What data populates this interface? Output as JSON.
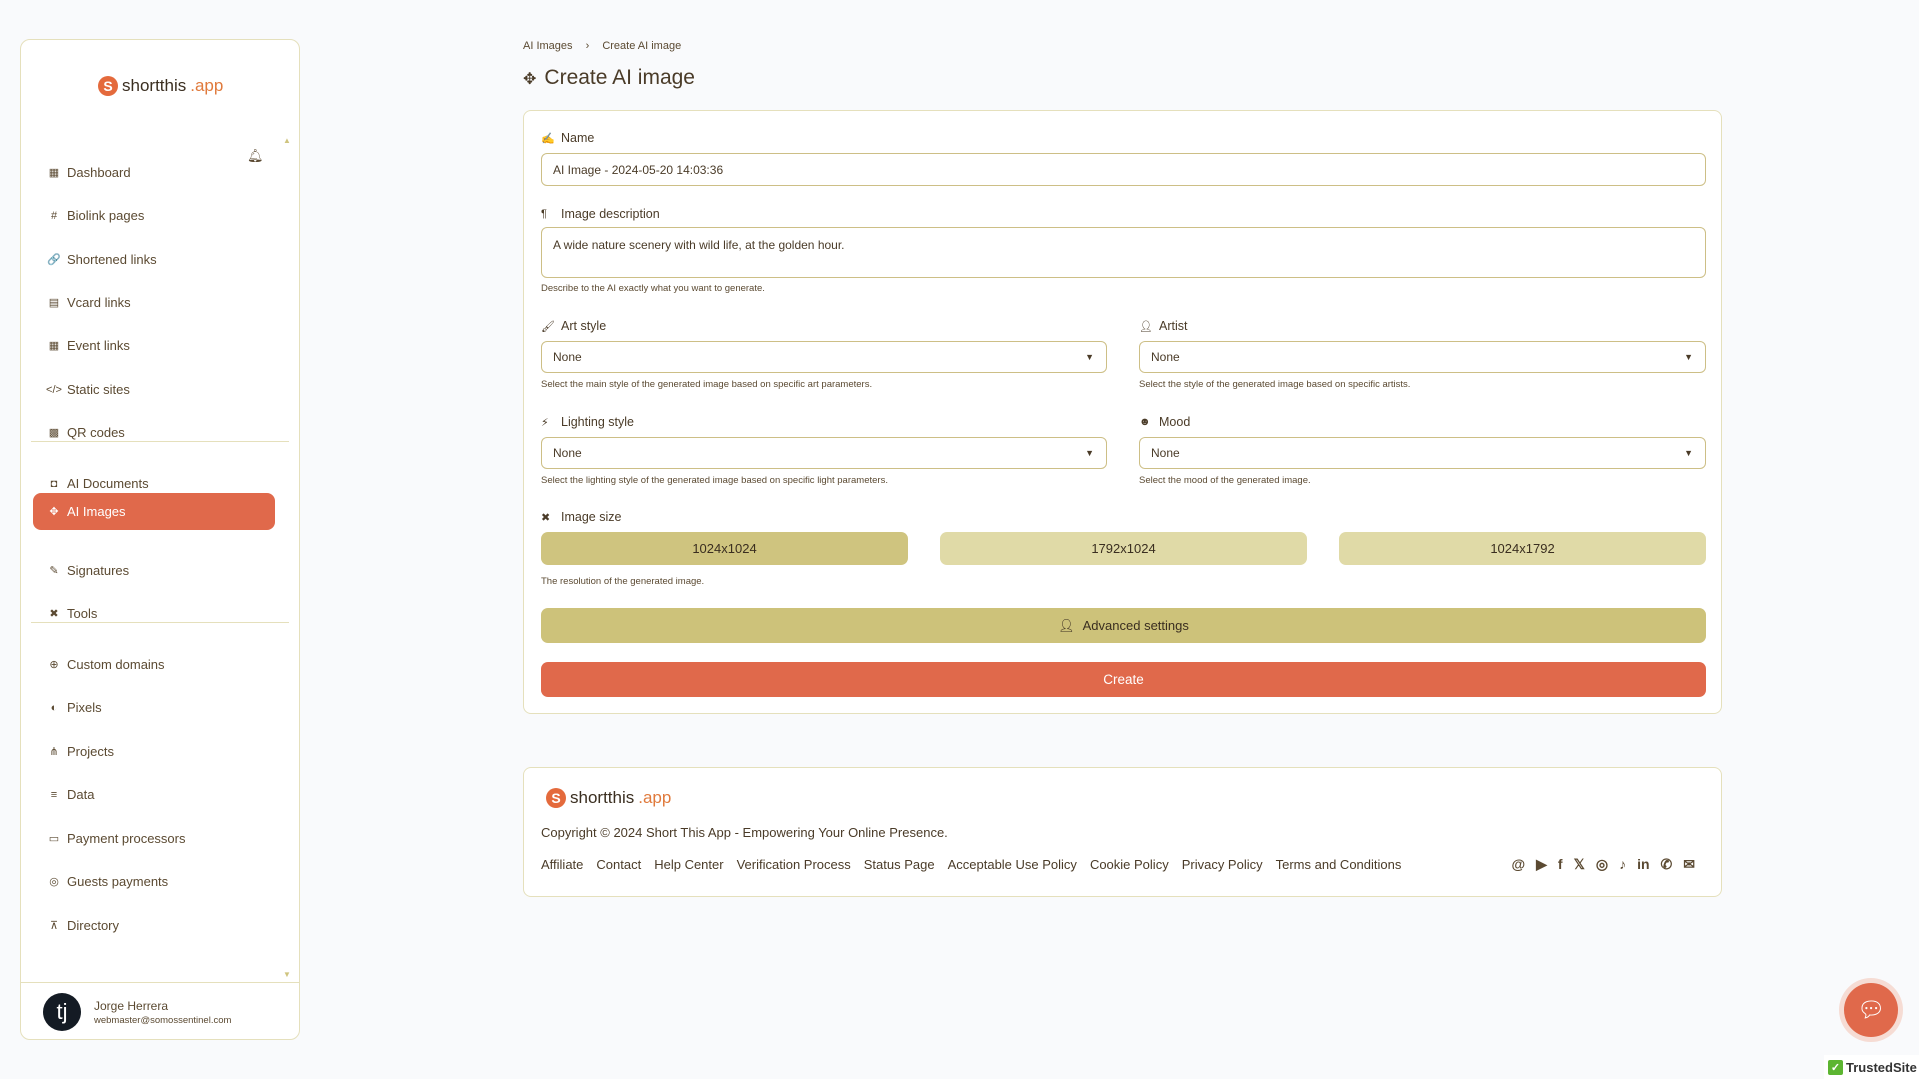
{
  "brand": {
    "name": "shortthis",
    "tld": ".app",
    "accent": "#e0694b",
    "olive": "#cfc47f"
  },
  "sidebar": {
    "items": [
      {
        "label": "Dashboard",
        "icon": "grid-icon",
        "glyph": "▦"
      },
      {
        "label": "Biolink pages",
        "icon": "hash-icon",
        "glyph": "#"
      },
      {
        "label": "Shortened links",
        "icon": "link-icon",
        "glyph": "🔗"
      },
      {
        "label": "Vcard links",
        "icon": "id-card-icon",
        "glyph": "▤"
      },
      {
        "label": "Event links",
        "icon": "calendar-icon",
        "glyph": "▦"
      },
      {
        "label": "Static sites",
        "icon": "code-icon",
        "glyph": "</>"
      },
      {
        "label": "QR codes",
        "icon": "qrcode-icon",
        "glyph": "▩"
      },
      {
        "label": "AI Documents",
        "icon": "robot-icon",
        "glyph": "◘"
      },
      {
        "label": "AI Images",
        "icon": "icons-icon",
        "glyph": "✥",
        "active": true
      },
      {
        "label": "Signatures",
        "icon": "signature-icon",
        "glyph": "✎"
      },
      {
        "label": "Tools",
        "icon": "tools-icon",
        "glyph": "✖"
      },
      {
        "label": "Custom domains",
        "icon": "globe-icon",
        "glyph": "⊕"
      },
      {
        "label": "Pixels",
        "icon": "adjust-icon",
        "glyph": "◐"
      },
      {
        "label": "Projects",
        "icon": "project-diagram-icon",
        "glyph": "⋔"
      },
      {
        "label": "Data",
        "icon": "database-icon",
        "glyph": "≡"
      },
      {
        "label": "Payment processors",
        "icon": "credit-card-icon",
        "glyph": "▭"
      },
      {
        "label": "Guests payments",
        "icon": "coins-icon",
        "glyph": "◎"
      },
      {
        "label": "Directory",
        "icon": "sitemap-icon",
        "glyph": "⊼"
      }
    ],
    "user": {
      "name": "Jorge Herrera",
      "email": "webmaster@somossentinel.com",
      "initials": "tj"
    }
  },
  "breadcrumb": {
    "parent": "AI Images",
    "current": "Create AI image"
  },
  "page_title": "Create AI image",
  "form": {
    "name": {
      "label": "Name",
      "value": "AI Image - 2024-05-20 14:03:36"
    },
    "description": {
      "label": "Image description",
      "value": "A wide nature scenery with wild life, at the golden hour.",
      "help": "Describe to the AI exactly what you want to generate."
    },
    "art_style": {
      "label": "Art style",
      "value": "None",
      "help": "Select the main style of the generated image based on specific art parameters."
    },
    "artist": {
      "label": "Artist",
      "value": "None",
      "help": "Select the style of the generated image based on specific artists."
    },
    "lighting": {
      "label": "Lighting style",
      "value": "None",
      "help": "Select the lighting style of the generated image based on specific light parameters."
    },
    "mood": {
      "label": "Mood",
      "value": "None",
      "help": "Select the mood of the generated image."
    },
    "size": {
      "label": "Image size",
      "options": [
        "1024x1024",
        "1792x1024",
        "1024x1792"
      ],
      "selected": "1024x1024",
      "help": "The resolution of the generated image."
    },
    "advanced_label": "Advanced settings",
    "create_label": "Create"
  },
  "footer": {
    "copyright": "Copyright © 2024 Short This App - Empowering Your Online Presence.",
    "links": [
      "Affiliate",
      "Contact",
      "Help Center",
      "Verification Process",
      "Status Page",
      "Acceptable Use Policy",
      "Cookie Policy",
      "Privacy Policy",
      "Terms and Conditions"
    ],
    "social": [
      {
        "icon": "threads-icon",
        "glyph": "@"
      },
      {
        "icon": "youtube-icon",
        "glyph": "▶"
      },
      {
        "icon": "facebook-icon",
        "glyph": "f"
      },
      {
        "icon": "x-icon",
        "glyph": "𝕏"
      },
      {
        "icon": "instagram-icon",
        "glyph": "◎"
      },
      {
        "icon": "tiktok-icon",
        "glyph": "♪"
      },
      {
        "icon": "linkedin-icon",
        "glyph": "in"
      },
      {
        "icon": "whatsapp-icon",
        "glyph": "✆"
      },
      {
        "icon": "email-icon",
        "glyph": "✉"
      }
    ]
  },
  "trusted_badge": "TrustedSite"
}
